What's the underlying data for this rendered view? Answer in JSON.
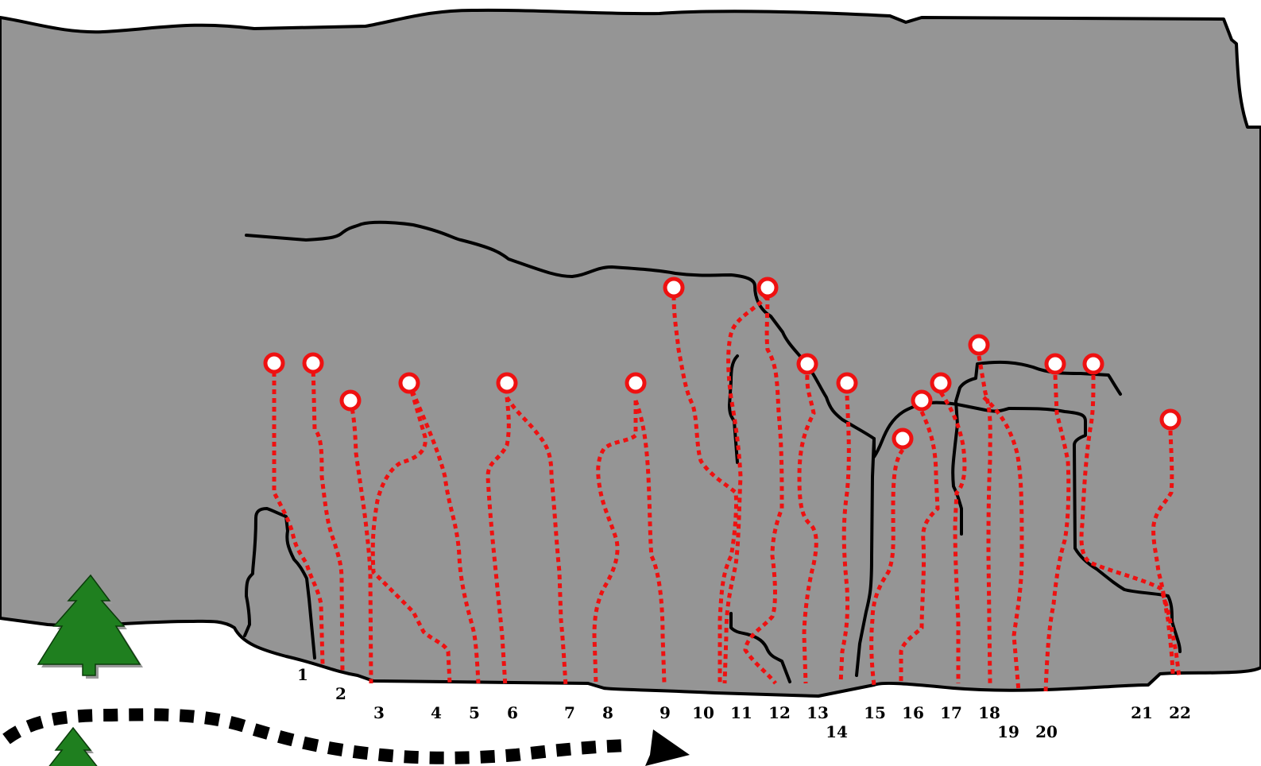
{
  "diagram": {
    "colors": {
      "rock": "#959595",
      "outline": "#000000",
      "route": "#ee1111",
      "anchor_fill": "#ffffff",
      "tree": "#1f7f1f",
      "tree_shadow": "#9a9a9a",
      "path": "#000000"
    },
    "icons": [
      "tree-icon",
      "tree-icon",
      "path-arrow-icon",
      "anchor-icon"
    ],
    "routes": [
      {
        "number": "1"
      },
      {
        "number": "2"
      },
      {
        "number": "3"
      },
      {
        "number": "4"
      },
      {
        "number": "5"
      },
      {
        "number": "6"
      },
      {
        "number": "7"
      },
      {
        "number": "8"
      },
      {
        "number": "9"
      },
      {
        "number": "10"
      },
      {
        "number": "11"
      },
      {
        "number": "12"
      },
      {
        "number": "13"
      },
      {
        "number": "14"
      },
      {
        "number": "15"
      },
      {
        "number": "16"
      },
      {
        "number": "17"
      },
      {
        "number": "18"
      },
      {
        "number": "19"
      },
      {
        "number": "20"
      },
      {
        "number": "21"
      },
      {
        "number": "22"
      }
    ]
  }
}
